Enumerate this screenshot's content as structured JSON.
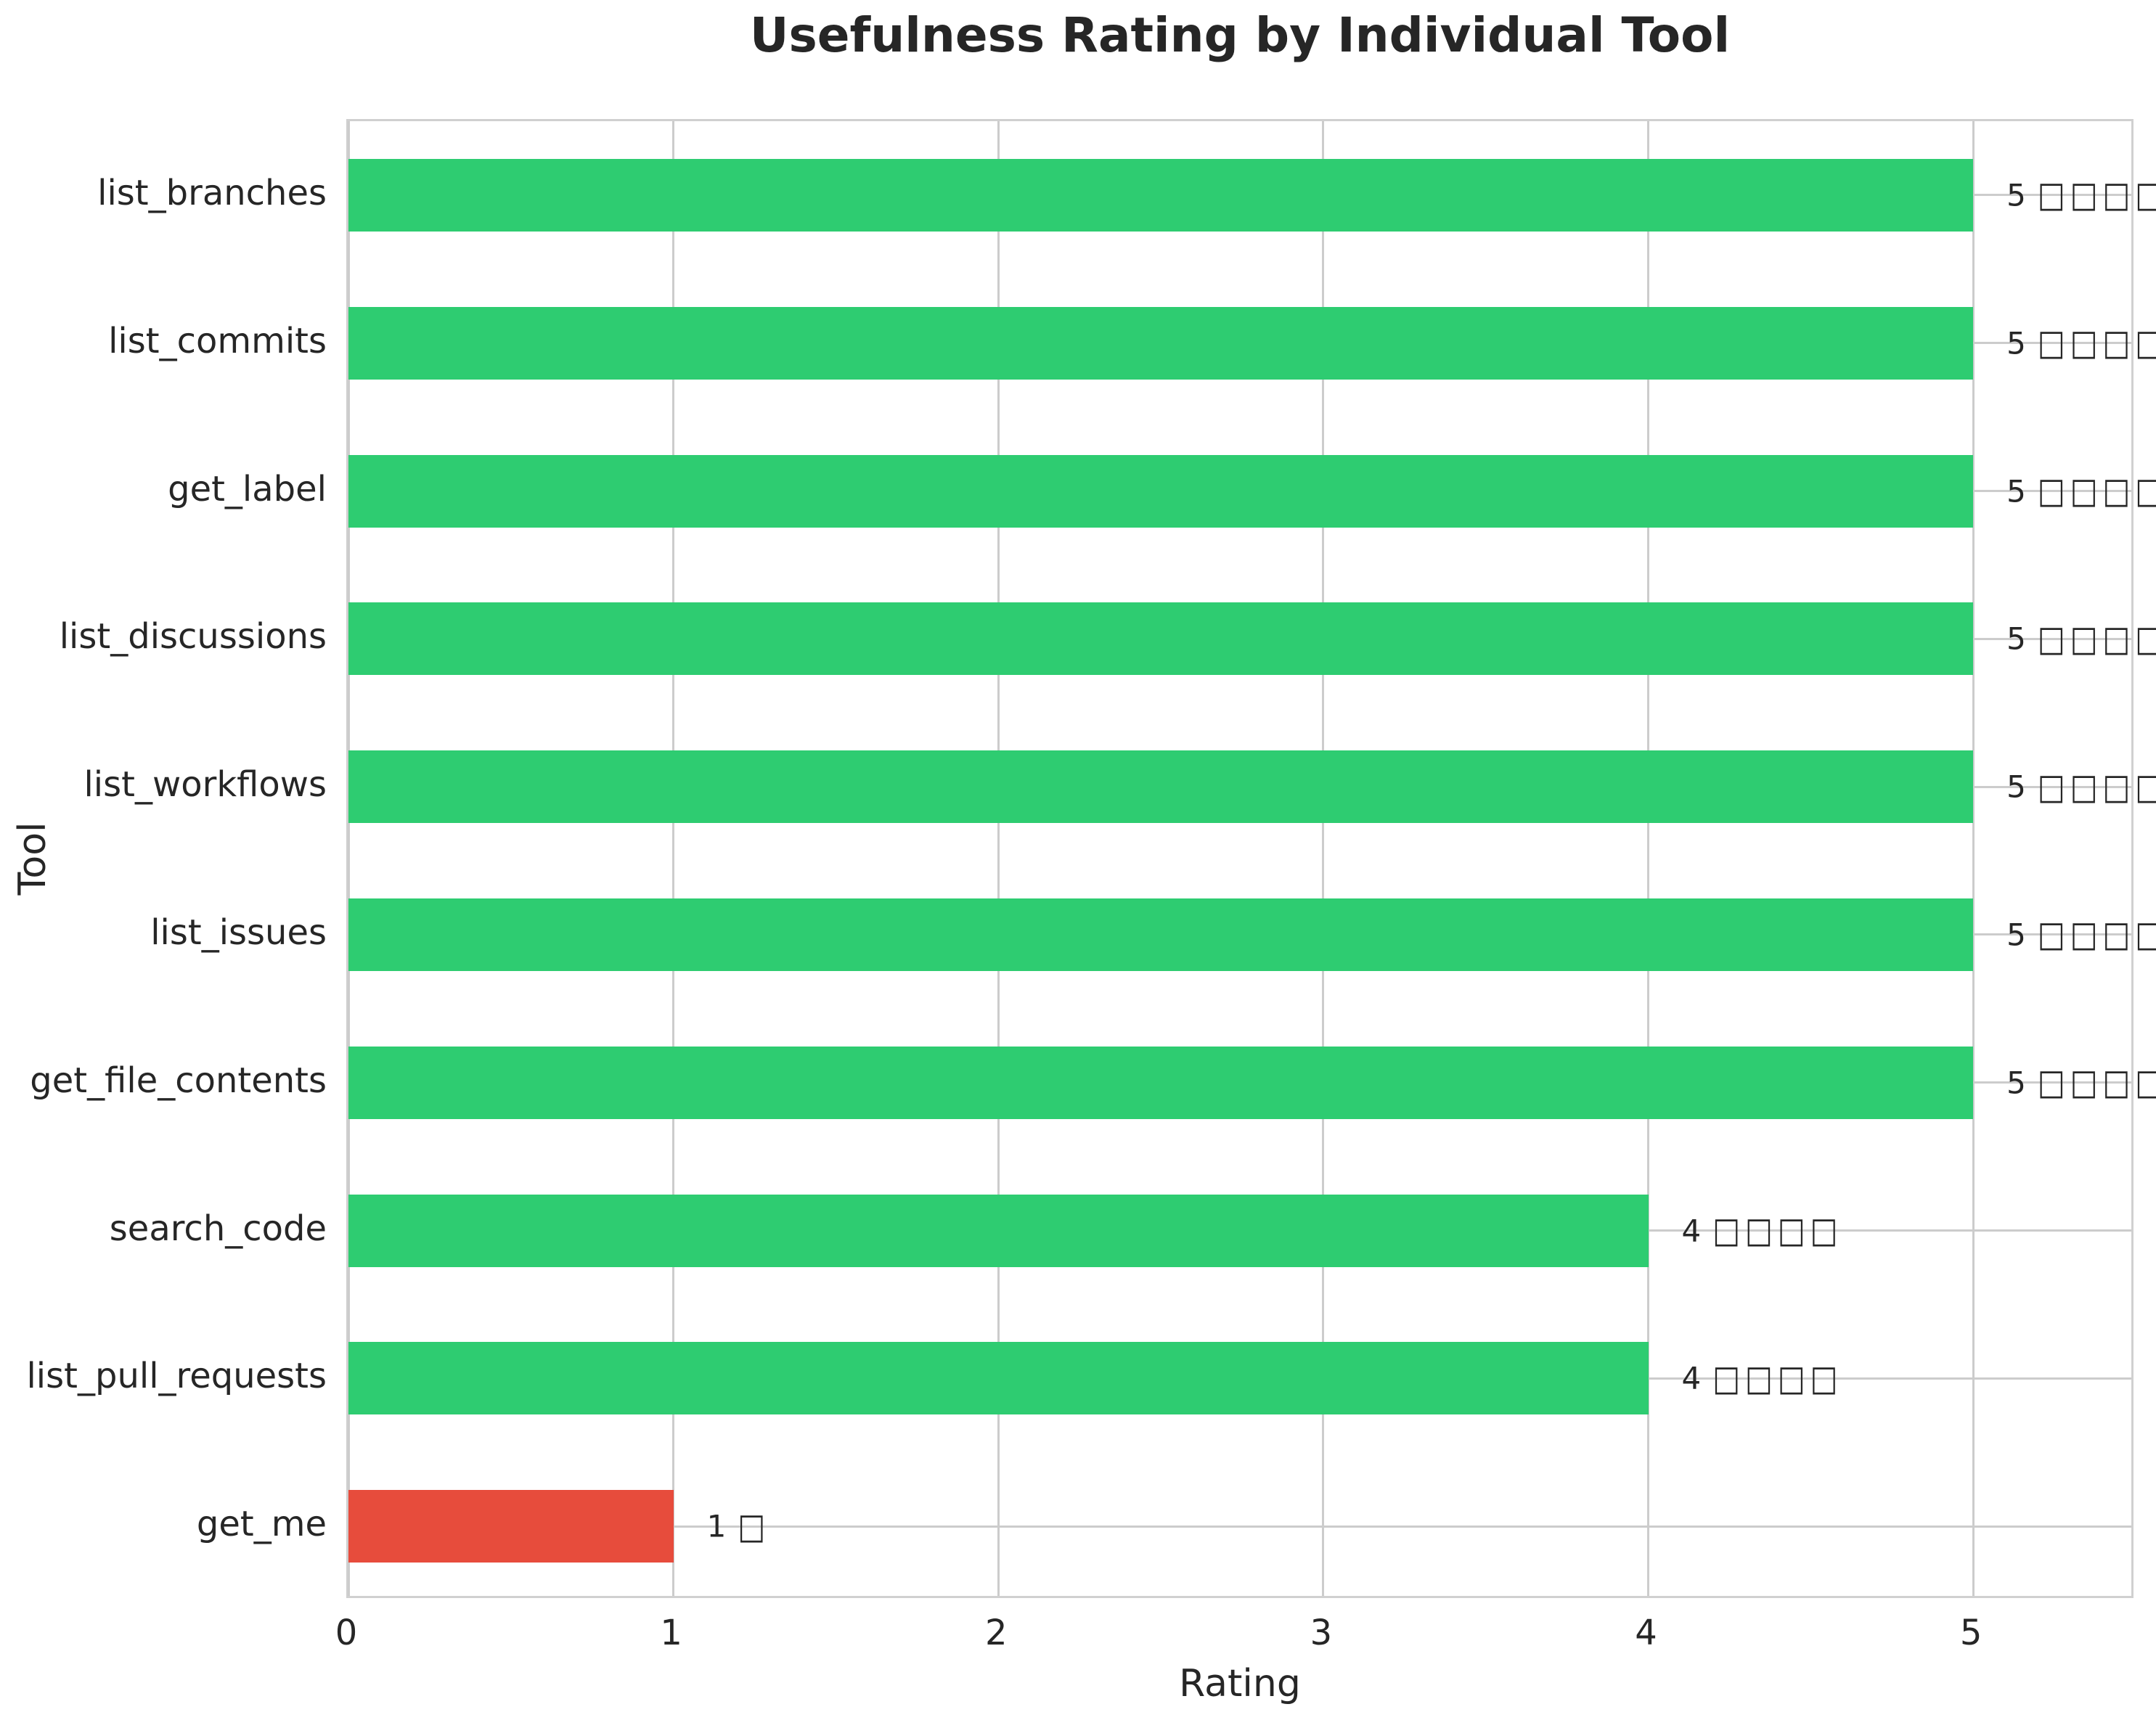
{
  "figure": {
    "background": "#ffffff"
  },
  "chart_data": {
    "type": "bar",
    "orientation": "horizontal",
    "title": "Usefulness Rating by Individual Tool",
    "xlabel": "Rating",
    "ylabel": "Tool",
    "categories": [
      "list_branches",
      "list_commits",
      "get_label",
      "list_discussions",
      "list_workflows",
      "list_issues",
      "get_file_contents",
      "search_code",
      "list_pull_requests",
      "get_me"
    ],
    "values": [
      5,
      5,
      5,
      5,
      5,
      5,
      5,
      4,
      4,
      1
    ],
    "bar_colors": [
      "#2ecc71",
      "#2ecc71",
      "#2ecc71",
      "#2ecc71",
      "#2ecc71",
      "#2ecc71",
      "#2ecc71",
      "#2ecc71",
      "#2ecc71",
      "#e74c3c"
    ],
    "bar_label_values": [
      "5",
      "5",
      "5",
      "5",
      "5",
      "5",
      "5",
      "4",
      "4",
      "1"
    ],
    "bar_label_glyphs": [
      "□□□□□",
      "□□□□□",
      "□□□□□",
      "□□□□□",
      "□□□□□",
      "□□□□□",
      "□□□□□",
      "□□□□",
      "□□□□",
      "□"
    ],
    "xticks": [
      0,
      1,
      2,
      3,
      4,
      5
    ],
    "xlim": [
      0,
      5.5
    ],
    "grid": true,
    "legend_position": "none",
    "style": {
      "positive_color": "#2ecc71",
      "negative_color": "#e74c3c",
      "grid_color": "#cccccc",
      "spine_color": "#d0d0d0",
      "text_color": "#262626",
      "background": "#ffffff"
    }
  }
}
